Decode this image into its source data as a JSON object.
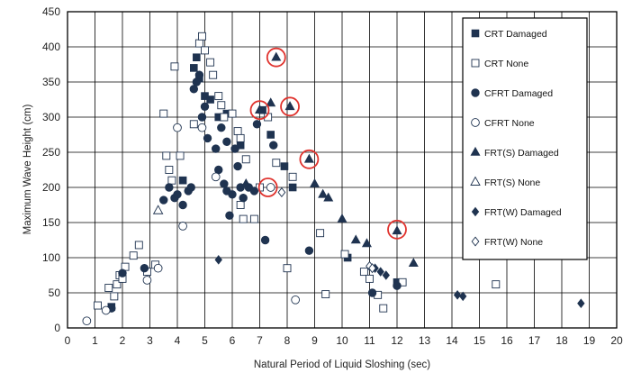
{
  "chart_data": {
    "type": "scatter",
    "xlabel": "Natural Period of Liquid Sloshing (sec)",
    "ylabel": "Maximum Wave Height (cm)",
    "xlim": [
      0,
      20
    ],
    "ylim": [
      0,
      450
    ],
    "x_ticks": [
      0,
      1,
      2,
      3,
      4,
      5,
      6,
      7,
      8,
      9,
      10,
      11,
      12,
      13,
      14,
      15,
      16,
      17,
      18,
      19,
      20
    ],
    "y_ticks": [
      0,
      50,
      100,
      150,
      200,
      250,
      300,
      350,
      400,
      450
    ],
    "grid": true,
    "legend_position": "top-right",
    "series": [
      {
        "name": "CRT  Damaged",
        "marker": "square",
        "filled": true,
        "color": "#1f3350",
        "points": [
          [
            1.6,
            30
          ],
          [
            4.2,
            210
          ],
          [
            4.6,
            370
          ],
          [
            4.7,
            385
          ],
          [
            4.8,
            355
          ],
          [
            5.0,
            330
          ],
          [
            5.2,
            325
          ],
          [
            5.5,
            300
          ],
          [
            5.8,
            305
          ],
          [
            6.3,
            260
          ],
          [
            7.1,
            310
          ],
          [
            7.4,
            275
          ],
          [
            7.9,
            230
          ],
          [
            8.2,
            200
          ],
          [
            10.2,
            100
          ],
          [
            12.0,
            65
          ]
        ]
      },
      {
        "name": "CRT  None",
        "marker": "square",
        "filled": false,
        "color": "#1f3350",
        "points": [
          [
            1.1,
            32
          ],
          [
            1.5,
            57
          ],
          [
            1.7,
            45
          ],
          [
            1.8,
            62
          ],
          [
            1.9,
            75
          ],
          [
            2.0,
            70
          ],
          [
            2.1,
            87
          ],
          [
            2.4,
            103
          ],
          [
            2.6,
            118
          ],
          [
            2.9,
            80
          ],
          [
            3.2,
            90
          ],
          [
            3.5,
            305
          ],
          [
            3.6,
            245
          ],
          [
            3.7,
            225
          ],
          [
            3.8,
            210
          ],
          [
            3.9,
            372
          ],
          [
            4.1,
            245
          ],
          [
            4.6,
            290
          ],
          [
            4.8,
            405
          ],
          [
            4.9,
            415
          ],
          [
            5.0,
            395
          ],
          [
            5.2,
            378
          ],
          [
            5.3,
            360
          ],
          [
            5.5,
            330
          ],
          [
            5.6,
            317
          ],
          [
            5.7,
            300
          ],
          [
            6.0,
            305
          ],
          [
            6.2,
            280
          ],
          [
            6.3,
            270
          ],
          [
            6.5,
            240
          ],
          [
            6.3,
            175
          ],
          [
            6.4,
            155
          ],
          [
            6.8,
            155
          ],
          [
            7.0,
            200
          ],
          [
            7.3,
            300
          ],
          [
            7.6,
            235
          ],
          [
            8.0,
            85
          ],
          [
            8.2,
            215
          ],
          [
            9.2,
            135
          ],
          [
            9.4,
            48
          ],
          [
            10.1,
            105
          ],
          [
            10.8,
            80
          ],
          [
            11.0,
            70
          ],
          [
            11.3,
            47
          ],
          [
            11.5,
            28
          ],
          [
            12.2,
            65
          ],
          [
            15.6,
            62
          ]
        ]
      },
      {
        "name": "CFRT  Damaged",
        "marker": "circle",
        "filled": true,
        "color": "#1f3350",
        "points": [
          [
            1.6,
            28
          ],
          [
            2.0,
            78
          ],
          [
            2.8,
            85
          ],
          [
            3.5,
            182
          ],
          [
            3.7,
            200
          ],
          [
            3.9,
            185
          ],
          [
            4.0,
            190
          ],
          [
            4.2,
            175
          ],
          [
            4.4,
            195
          ],
          [
            4.5,
            200
          ],
          [
            4.6,
            340
          ],
          [
            4.7,
            350
          ],
          [
            4.8,
            360
          ],
          [
            4.9,
            300
          ],
          [
            5.0,
            315
          ],
          [
            5.1,
            270
          ],
          [
            5.4,
            255
          ],
          [
            5.5,
            225
          ],
          [
            5.6,
            285
          ],
          [
            5.7,
            205
          ],
          [
            5.8,
            195
          ],
          [
            5.8,
            265
          ],
          [
            5.9,
            160
          ],
          [
            6.0,
            190
          ],
          [
            6.1,
            255
          ],
          [
            6.2,
            230
          ],
          [
            6.3,
            200
          ],
          [
            6.4,
            185
          ],
          [
            6.6,
            200
          ],
          [
            6.8,
            195
          ],
          [
            6.9,
            290
          ],
          [
            7.2,
            125
          ],
          [
            7.5,
            260
          ],
          [
            8.8,
            110
          ],
          [
            11.1,
            50
          ],
          [
            12.0,
            60
          ]
        ]
      },
      {
        "name": "CFRT  None",
        "marker": "circle",
        "filled": false,
        "color": "#1f3350",
        "points": [
          [
            0.7,
            10
          ],
          [
            1.4,
            25
          ],
          [
            2.9,
            68
          ],
          [
            3.3,
            85
          ],
          [
            4.0,
            285
          ],
          [
            4.2,
            145
          ],
          [
            4.9,
            285
          ],
          [
            5.4,
            215
          ],
          [
            7.4,
            200
          ],
          [
            8.3,
            40
          ]
        ]
      },
      {
        "name": "FRT(S)  Damaged",
        "marker": "triangle",
        "filled": true,
        "color": "#1f3350",
        "points": [
          [
            6.5,
            205
          ],
          [
            7.0,
            310
          ],
          [
            7.4,
            320
          ],
          [
            7.6,
            385
          ],
          [
            8.1,
            315
          ],
          [
            8.8,
            240
          ],
          [
            9.0,
            205
          ],
          [
            9.3,
            190
          ],
          [
            9.5,
            185
          ],
          [
            10.0,
            155
          ],
          [
            10.5,
            125
          ],
          [
            10.9,
            120
          ],
          [
            12.0,
            138
          ],
          [
            12.6,
            92
          ]
        ]
      },
      {
        "name": "FRT(S)  None",
        "marker": "triangle",
        "filled": false,
        "color": "#1f3350",
        "points": [
          [
            3.3,
            167
          ]
        ]
      },
      {
        "name": "FRT(W)  Damaged",
        "marker": "diamond",
        "filled": true,
        "color": "#1f3350",
        "points": [
          [
            5.5,
            97
          ],
          [
            11.2,
            85
          ],
          [
            11.4,
            80
          ],
          [
            11.6,
            75
          ],
          [
            14.2,
            47
          ],
          [
            14.4,
            45
          ],
          [
            18.7,
            35
          ]
        ]
      },
      {
        "name": "FRT(W)  None",
        "marker": "diamond",
        "filled": false,
        "color": "#1f3350",
        "points": [
          [
            7.8,
            193
          ],
          [
            11.0,
            88
          ],
          [
            11.1,
            85
          ]
        ]
      }
    ],
    "highlight_circles": {
      "color": "#e0332e",
      "points": [
        [
          7.0,
          310
        ],
        [
          7.6,
          385
        ],
        [
          8.1,
          315
        ],
        [
          7.3,
          200
        ],
        [
          8.8,
          240
        ],
        [
          12.0,
          140
        ]
      ]
    }
  }
}
